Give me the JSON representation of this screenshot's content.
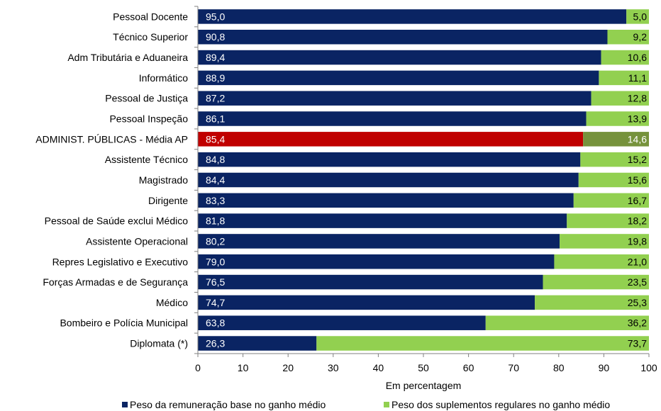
{
  "chart_data": {
    "type": "bar",
    "orientation": "horizontal",
    "stacked": true,
    "categories": [
      "Pessoal Docente",
      "Técnico Superior",
      "Adm Tributária e Aduaneira",
      "Informático",
      "Pessoal de Justiça",
      "Pessoal Inspeção",
      "ADMINIST. PÚBLICAS - Média AP",
      "Assistente Técnico",
      "Magistrado",
      "Dirigente",
      "Pessoal de Saúde exclui Médico",
      "Assistente Operacional",
      "Repres Legislativo e Executivo",
      "Forças Armadas e de Segurança",
      "Médico",
      "Bombeiro e Polícia Municipal",
      "Diplomata (*)"
    ],
    "series": [
      {
        "name": "Peso da remuneração base no ganho médio",
        "color": "#0a2463",
        "values": [
          95.0,
          90.8,
          89.4,
          88.9,
          87.2,
          86.1,
          85.4,
          84.8,
          84.4,
          83.3,
          81.8,
          80.2,
          79.0,
          76.5,
          74.7,
          63.8,
          26.3
        ],
        "labels": [
          "95,0",
          "90,8",
          "89,4",
          "88,9",
          "87,2",
          "86,1",
          "85,4",
          "84,8",
          "84,4",
          "83,3",
          "81,8",
          "80,2",
          "79,0",
          "76,5",
          "74,7",
          "63,8",
          "26,3"
        ]
      },
      {
        "name": "Peso dos suplementos regulares no ganho médio",
        "color": "#92d050",
        "values": [
          5.0,
          9.2,
          10.6,
          11.1,
          12.8,
          13.9,
          14.6,
          15.2,
          15.6,
          16.7,
          18.2,
          19.8,
          21.0,
          23.5,
          25.3,
          36.2,
          73.7
        ],
        "labels": [
          "5,0",
          "9,2",
          "10,6",
          "11,1",
          "12,8",
          "13,9",
          "14,6",
          "15,2",
          "15,6",
          "16,7",
          "18,2",
          "19,8",
          "21,0",
          "23,5",
          "25,3",
          "36,2",
          "73,7"
        ]
      }
    ],
    "highlight": {
      "category": "ADMINIST. PÚBLICAS - Média AP",
      "colors": [
        "#c00000",
        "#76923c"
      ]
    },
    "xlabel": "Em percentagem",
    "xlim": [
      0,
      100
    ],
    "xticks": [
      0,
      10,
      20,
      30,
      40,
      50,
      60,
      70,
      80,
      90,
      100
    ],
    "grid": false,
    "legend_position": "bottom"
  }
}
